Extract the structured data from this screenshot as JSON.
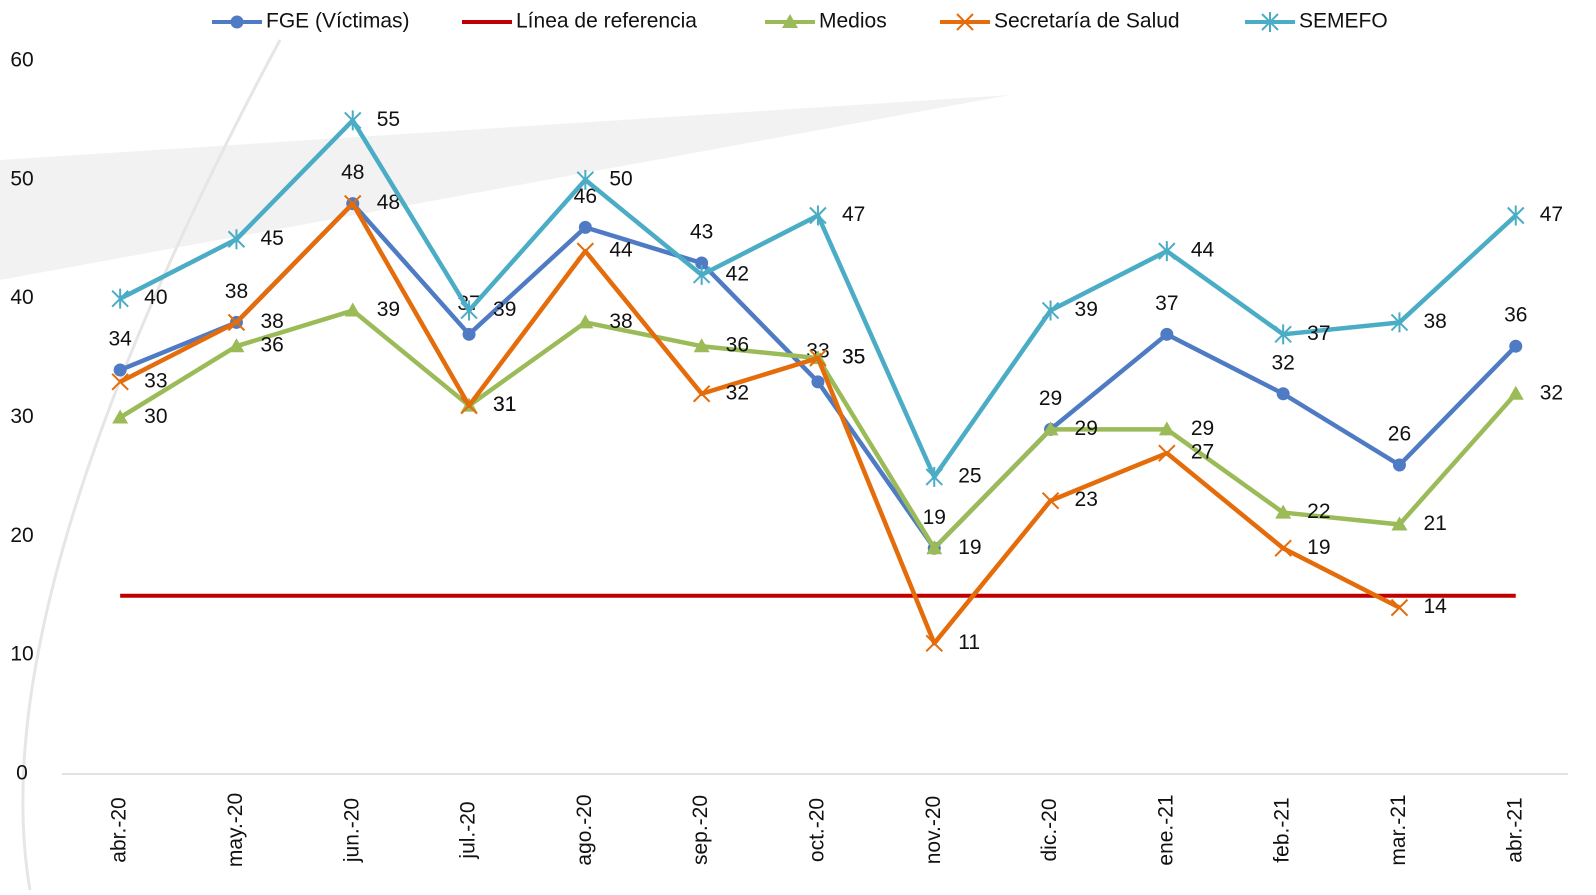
{
  "chart_data": {
    "type": "line",
    "categories": [
      "abr.-20",
      "may.-20",
      "jun.-20",
      "jul.-20",
      "ago.-20",
      "sep.-20",
      "oct.-20",
      "nov.-20",
      "dic.-20",
      "ene.-21",
      "feb.-21",
      "mar.-21",
      "abr.-21"
    ],
    "ylim": [
      0,
      60
    ],
    "yticks": [
      0,
      10,
      20,
      30,
      40,
      50,
      60
    ],
    "grid": false,
    "legend": "top",
    "series": [
      {
        "name": "FGE (Víctimas)",
        "color": "#4f7bc4",
        "marker": "circle",
        "show_labels": true,
        "values": [
          34,
          38,
          48,
          37,
          46,
          43,
          33,
          19,
          29,
          37,
          32,
          26,
          36
        ]
      },
      {
        "name": "Línea de referencia",
        "color": "#c00000",
        "marker": "none",
        "show_labels": false,
        "values": [
          15,
          15,
          15,
          15,
          15,
          15,
          15,
          15,
          15,
          15,
          15,
          15,
          15
        ]
      },
      {
        "name": "Medios",
        "color": "#9bbb59",
        "marker": "triangle",
        "show_labels": true,
        "values": [
          30,
          36,
          39,
          31,
          38,
          36,
          35,
          19,
          29,
          29,
          22,
          21,
          32
        ]
      },
      {
        "name": "Secretaría de Salud",
        "color": "#e46c0a",
        "marker": "cross",
        "show_labels": true,
        "values": [
          33,
          38,
          48,
          31,
          44,
          32,
          35,
          11,
          23,
          27,
          19,
          14,
          null
        ]
      },
      {
        "name": "SEMEFO",
        "color": "#4bacc6",
        "marker": "star",
        "show_labels": true,
        "values": [
          40,
          45,
          55,
          39,
          50,
          42,
          47,
          25,
          39,
          44,
          37,
          38,
          47
        ]
      }
    ]
  }
}
